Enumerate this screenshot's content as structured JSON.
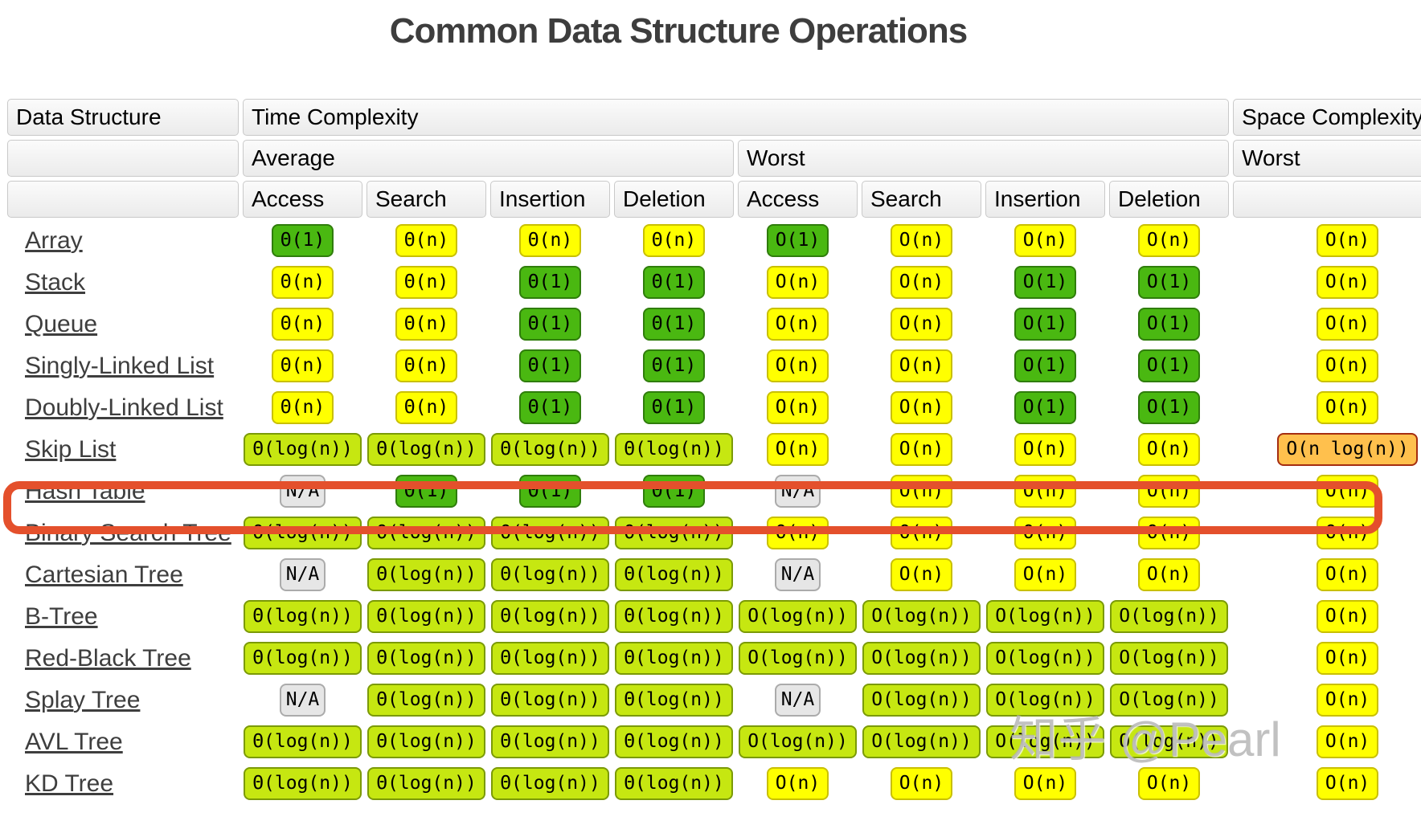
{
  "page_title": "Common Data Structure Operations",
  "watermark": "知乎 @Pearl",
  "chart_data": {
    "type": "table",
    "title": "Common Data Structure Operations",
    "column_groups": {
      "data_structure": "Data Structure",
      "time_complexity": "Time Complexity",
      "space_complexity": "Space Complexity",
      "average": "Average",
      "worst": "Worst",
      "space_worst": "Worst"
    },
    "operations": [
      "Access",
      "Search",
      "Insertion",
      "Deletion"
    ],
    "palette": {
      "green_excellent": "#4ab811",
      "yellow_fair": "#ffff00",
      "yellowgreen_good": "#c6e711",
      "orange_bad": "#ffc04d",
      "na_gray": "#e6e6e6",
      "highlight_red": "#e4502c",
      "header_bg": "#ededed"
    },
    "rows": [
      {
        "name": "Array",
        "highlighted": false,
        "time": [
          {
            "v": "Θ(1)",
            "c": "g"
          },
          {
            "v": "Θ(n)",
            "c": "y"
          },
          {
            "v": "Θ(n)",
            "c": "y"
          },
          {
            "v": "Θ(n)",
            "c": "y"
          },
          {
            "v": "O(1)",
            "c": "g"
          },
          {
            "v": "O(n)",
            "c": "y"
          },
          {
            "v": "O(n)",
            "c": "y"
          },
          {
            "v": "O(n)",
            "c": "y"
          }
        ],
        "space": {
          "v": "O(n)",
          "c": "y"
        }
      },
      {
        "name": "Stack",
        "highlighted": false,
        "time": [
          {
            "v": "Θ(n)",
            "c": "y"
          },
          {
            "v": "Θ(n)",
            "c": "y"
          },
          {
            "v": "Θ(1)",
            "c": "g"
          },
          {
            "v": "Θ(1)",
            "c": "g"
          },
          {
            "v": "O(n)",
            "c": "y"
          },
          {
            "v": "O(n)",
            "c": "y"
          },
          {
            "v": "O(1)",
            "c": "g"
          },
          {
            "v": "O(1)",
            "c": "g"
          }
        ],
        "space": {
          "v": "O(n)",
          "c": "y"
        }
      },
      {
        "name": "Queue",
        "highlighted": false,
        "time": [
          {
            "v": "Θ(n)",
            "c": "y"
          },
          {
            "v": "Θ(n)",
            "c": "y"
          },
          {
            "v": "Θ(1)",
            "c": "g"
          },
          {
            "v": "Θ(1)",
            "c": "g"
          },
          {
            "v": "O(n)",
            "c": "y"
          },
          {
            "v": "O(n)",
            "c": "y"
          },
          {
            "v": "O(1)",
            "c": "g"
          },
          {
            "v": "O(1)",
            "c": "g"
          }
        ],
        "space": {
          "v": "O(n)",
          "c": "y"
        }
      },
      {
        "name": "Singly-Linked List",
        "highlighted": false,
        "time": [
          {
            "v": "Θ(n)",
            "c": "y"
          },
          {
            "v": "Θ(n)",
            "c": "y"
          },
          {
            "v": "Θ(1)",
            "c": "g"
          },
          {
            "v": "Θ(1)",
            "c": "g"
          },
          {
            "v": "O(n)",
            "c": "y"
          },
          {
            "v": "O(n)",
            "c": "y"
          },
          {
            "v": "O(1)",
            "c": "g"
          },
          {
            "v": "O(1)",
            "c": "g"
          }
        ],
        "space": {
          "v": "O(n)",
          "c": "y"
        }
      },
      {
        "name": "Doubly-Linked List",
        "highlighted": false,
        "time": [
          {
            "v": "Θ(n)",
            "c": "y"
          },
          {
            "v": "Θ(n)",
            "c": "y"
          },
          {
            "v": "Θ(1)",
            "c": "g"
          },
          {
            "v": "Θ(1)",
            "c": "g"
          },
          {
            "v": "O(n)",
            "c": "y"
          },
          {
            "v": "O(n)",
            "c": "y"
          },
          {
            "v": "O(1)",
            "c": "g"
          },
          {
            "v": "O(1)",
            "c": "g"
          }
        ],
        "space": {
          "v": "O(n)",
          "c": "y"
        }
      },
      {
        "name": "Skip List",
        "highlighted": false,
        "time": [
          {
            "v": "Θ(log(n))",
            "c": "yg"
          },
          {
            "v": "Θ(log(n))",
            "c": "yg"
          },
          {
            "v": "Θ(log(n))",
            "c": "yg"
          },
          {
            "v": "Θ(log(n))",
            "c": "yg"
          },
          {
            "v": "O(n)",
            "c": "y"
          },
          {
            "v": "O(n)",
            "c": "y"
          },
          {
            "v": "O(n)",
            "c": "y"
          },
          {
            "v": "O(n)",
            "c": "y"
          }
        ],
        "space": {
          "v": "O(n log(n))",
          "c": "o"
        }
      },
      {
        "name": "Hash Table",
        "highlighted": true,
        "time": [
          {
            "v": "N/A",
            "c": "na"
          },
          {
            "v": "Θ(1)",
            "c": "g"
          },
          {
            "v": "Θ(1)",
            "c": "g"
          },
          {
            "v": "Θ(1)",
            "c": "g"
          },
          {
            "v": "N/A",
            "c": "na"
          },
          {
            "v": "O(n)",
            "c": "y"
          },
          {
            "v": "O(n)",
            "c": "y"
          },
          {
            "v": "O(n)",
            "c": "y"
          }
        ],
        "space": {
          "v": "O(n)",
          "c": "y"
        }
      },
      {
        "name": "Binary Search Tree",
        "highlighted": false,
        "time": [
          {
            "v": "Θ(log(n))",
            "c": "yg"
          },
          {
            "v": "Θ(log(n))",
            "c": "yg"
          },
          {
            "v": "Θ(log(n))",
            "c": "yg"
          },
          {
            "v": "Θ(log(n))",
            "c": "yg"
          },
          {
            "v": "O(n)",
            "c": "y"
          },
          {
            "v": "O(n)",
            "c": "y"
          },
          {
            "v": "O(n)",
            "c": "y"
          },
          {
            "v": "O(n)",
            "c": "y"
          }
        ],
        "space": {
          "v": "O(n)",
          "c": "y"
        }
      },
      {
        "name": "Cartesian Tree",
        "highlighted": false,
        "time": [
          {
            "v": "N/A",
            "c": "na"
          },
          {
            "v": "Θ(log(n))",
            "c": "yg"
          },
          {
            "v": "Θ(log(n))",
            "c": "yg"
          },
          {
            "v": "Θ(log(n))",
            "c": "yg"
          },
          {
            "v": "N/A",
            "c": "na"
          },
          {
            "v": "O(n)",
            "c": "y"
          },
          {
            "v": "O(n)",
            "c": "y"
          },
          {
            "v": "O(n)",
            "c": "y"
          }
        ],
        "space": {
          "v": "O(n)",
          "c": "y"
        }
      },
      {
        "name": "B-Tree",
        "highlighted": false,
        "time": [
          {
            "v": "Θ(log(n))",
            "c": "yg"
          },
          {
            "v": "Θ(log(n))",
            "c": "yg"
          },
          {
            "v": "Θ(log(n))",
            "c": "yg"
          },
          {
            "v": "Θ(log(n))",
            "c": "yg"
          },
          {
            "v": "O(log(n))",
            "c": "yg"
          },
          {
            "v": "O(log(n))",
            "c": "yg"
          },
          {
            "v": "O(log(n))",
            "c": "yg"
          },
          {
            "v": "O(log(n))",
            "c": "yg"
          }
        ],
        "space": {
          "v": "O(n)",
          "c": "y"
        }
      },
      {
        "name": "Red-Black Tree",
        "highlighted": false,
        "time": [
          {
            "v": "Θ(log(n))",
            "c": "yg"
          },
          {
            "v": "Θ(log(n))",
            "c": "yg"
          },
          {
            "v": "Θ(log(n))",
            "c": "yg"
          },
          {
            "v": "Θ(log(n))",
            "c": "yg"
          },
          {
            "v": "O(log(n))",
            "c": "yg"
          },
          {
            "v": "O(log(n))",
            "c": "yg"
          },
          {
            "v": "O(log(n))",
            "c": "yg"
          },
          {
            "v": "O(log(n))",
            "c": "yg"
          }
        ],
        "space": {
          "v": "O(n)",
          "c": "y"
        }
      },
      {
        "name": "Splay Tree",
        "highlighted": false,
        "time": [
          {
            "v": "N/A",
            "c": "na"
          },
          {
            "v": "Θ(log(n))",
            "c": "yg"
          },
          {
            "v": "Θ(log(n))",
            "c": "yg"
          },
          {
            "v": "Θ(log(n))",
            "c": "yg"
          },
          {
            "v": "N/A",
            "c": "na"
          },
          {
            "v": "O(log(n))",
            "c": "yg"
          },
          {
            "v": "O(log(n))",
            "c": "yg"
          },
          {
            "v": "O(log(n))",
            "c": "yg"
          }
        ],
        "space": {
          "v": "O(n)",
          "c": "y"
        }
      },
      {
        "name": "AVL Tree",
        "highlighted": false,
        "time": [
          {
            "v": "Θ(log(n))",
            "c": "yg"
          },
          {
            "v": "Θ(log(n))",
            "c": "yg"
          },
          {
            "v": "Θ(log(n))",
            "c": "yg"
          },
          {
            "v": "Θ(log(n))",
            "c": "yg"
          },
          {
            "v": "O(log(n))",
            "c": "yg"
          },
          {
            "v": "O(log(n))",
            "c": "yg"
          },
          {
            "v": "O(log(n))",
            "c": "yg"
          },
          {
            "v": "O(log(n))",
            "c": "yg"
          }
        ],
        "space": {
          "v": "O(n)",
          "c": "y"
        }
      },
      {
        "name": "KD Tree",
        "highlighted": false,
        "time": [
          {
            "v": "Θ(log(n))",
            "c": "yg"
          },
          {
            "v": "Θ(log(n))",
            "c": "yg"
          },
          {
            "v": "Θ(log(n))",
            "c": "yg"
          },
          {
            "v": "Θ(log(n))",
            "c": "yg"
          },
          {
            "v": "O(n)",
            "c": "y"
          },
          {
            "v": "O(n)",
            "c": "y"
          },
          {
            "v": "O(n)",
            "c": "y"
          },
          {
            "v": "O(n)",
            "c": "y"
          }
        ],
        "space": {
          "v": "O(n)",
          "c": "y"
        }
      }
    ]
  }
}
